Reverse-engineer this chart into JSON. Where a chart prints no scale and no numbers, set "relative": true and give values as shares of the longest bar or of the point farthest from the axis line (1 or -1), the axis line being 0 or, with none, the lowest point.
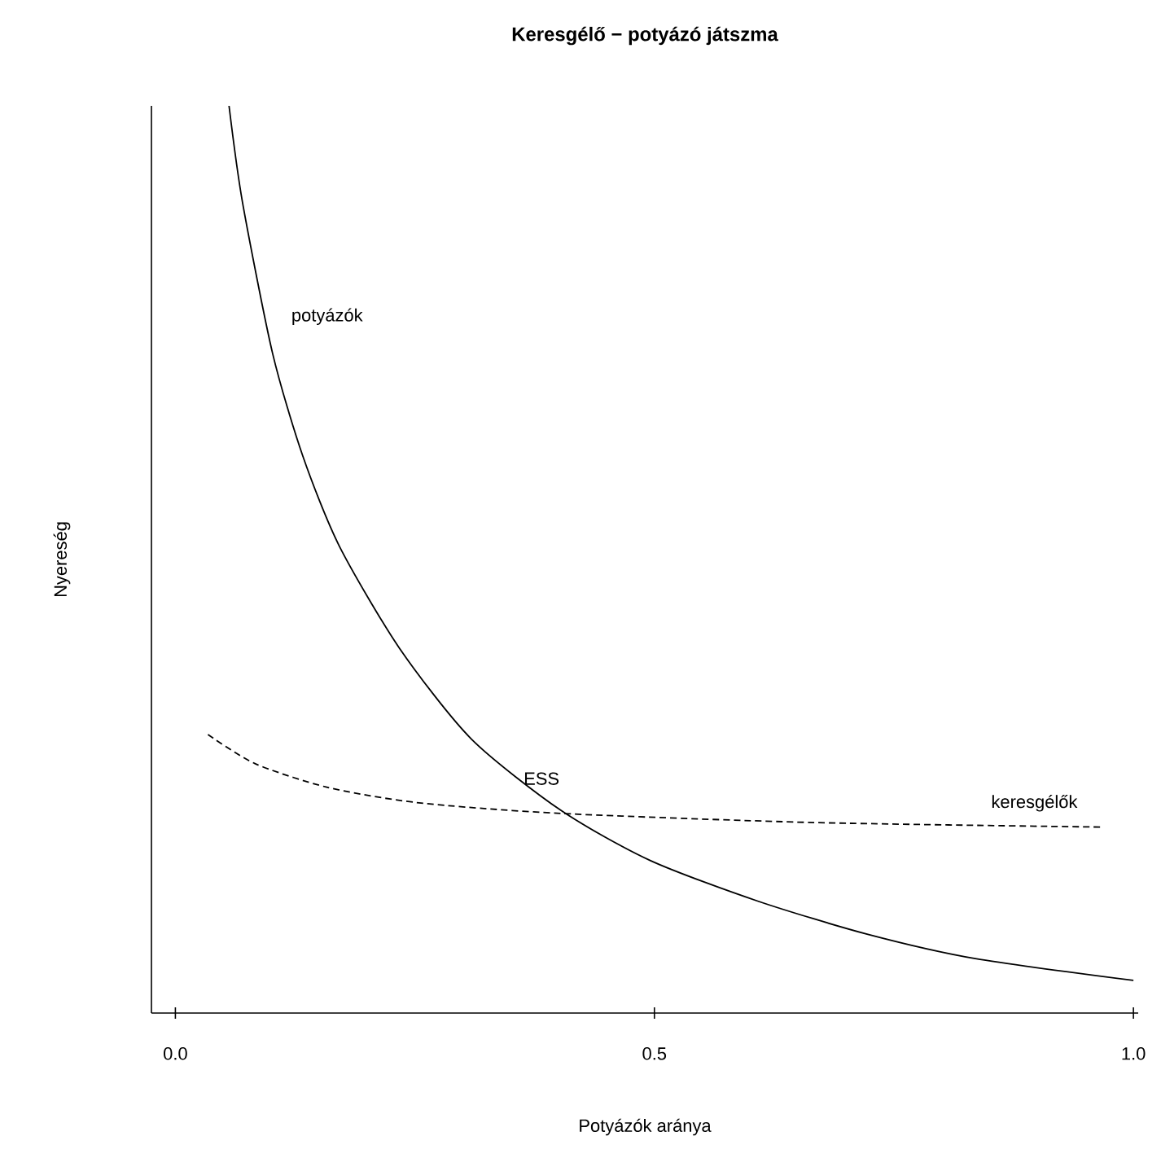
{
  "chart_data": {
    "type": "line",
    "title": "Keresgélő − potyázó játszma",
    "xlabel": "Potyázók aránya",
    "ylabel": "Nyereség",
    "relative": true,
    "xlim": [
      -0.025,
      1.005
    ],
    "xticks": [
      {
        "value": 0,
        "label": "0.0"
      },
      0.5,
      {
        "value": 1,
        "label": "1.0"
      }
    ],
    "marker": "none",
    "grid": false,
    "legend": false,
    "annotations": [
      {
        "text": "ESS",
        "x": 0.4,
        "y": 0.22
      }
    ],
    "series": [
      {
        "name": "potyázók",
        "color": "#000000",
        "line_style": "solid",
        "x": [
          0.056,
          0.07,
          0.1015,
          0.133,
          0.171,
          0.234,
          0.309,
          0.403,
          0.496,
          0.609,
          0.722,
          0.835,
          1.0
        ],
        "values": [
          1.0,
          0.894,
          0.727,
          0.614,
          0.515,
          0.402,
          0.302,
          0.223,
          0.168,
          0.123,
          0.087,
          0.06,
          0.036
        ]
      },
      {
        "name": "keresgélők",
        "color": "#000000",
        "line_style": "dashed",
        "x": [
          0.034,
          0.083,
          0.158,
          0.252,
          0.403,
          0.666,
          0.968
        ],
        "values": [
          0.307,
          0.275,
          0.249,
          0.232,
          0.22,
          0.21,
          0.205
        ]
      }
    ]
  }
}
